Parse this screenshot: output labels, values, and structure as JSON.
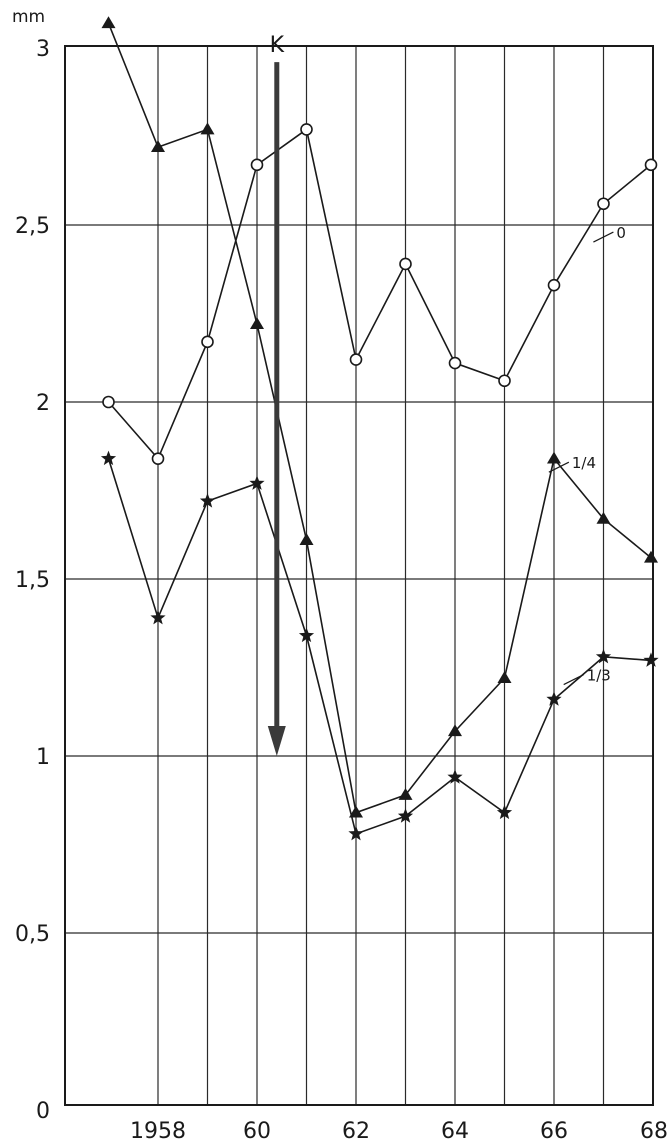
{
  "chart_data": {
    "type": "line",
    "title": "",
    "xlabel": "",
    "ylabel": "mm",
    "x_range": [
      1956.8,
      1968
    ],
    "ylim": [
      0,
      3.05
    ],
    "grid": true,
    "x_ticks": [
      {
        "value": 1958,
        "label": "1958"
      },
      {
        "value": 1960,
        "label": "60"
      },
      {
        "value": 1962,
        "label": "62"
      },
      {
        "value": 1964,
        "label": "64"
      },
      {
        "value": 1966,
        "label": "66"
      },
      {
        "value": 1968,
        "label": "68"
      }
    ],
    "y_ticks": [
      {
        "value": 0,
        "label": "0"
      },
      {
        "value": 0.5,
        "label": "0,5"
      },
      {
        "value": 1,
        "label": "1"
      },
      {
        "value": 1.5,
        "label": "1,5"
      },
      {
        "value": 2,
        "label": "2"
      },
      {
        "value": 2.5,
        "label": "2,5"
      },
      {
        "value": 3,
        "label": "3"
      }
    ],
    "x": [
      1957,
      1958,
      1959,
      1960,
      1961,
      1962,
      1963,
      1964,
      1965,
      1966,
      1967,
      1968
    ],
    "series": [
      {
        "name": "0",
        "marker": "circle",
        "x": [
          1957,
          1958,
          1959,
          1960,
          1961,
          1962,
          1963,
          1964,
          1965,
          1966,
          1967,
          1968
        ],
        "values": [
          2.0,
          1.84,
          2.17,
          2.67,
          2.77,
          2.12,
          2.39,
          2.11,
          2.06,
          2.33,
          2.56,
          2.67
        ],
        "label_anchor": {
          "x": 1967.2,
          "y": 2.48
        }
      },
      {
        "name": "1/4",
        "marker": "triangle",
        "x": [
          1957,
          1958,
          1959,
          1960,
          1961,
          1962,
          1963,
          1964,
          1965,
          1966,
          1967,
          1968
        ],
        "values": [
          3.07,
          2.72,
          2.77,
          2.22,
          1.61,
          0.84,
          0.89,
          1.07,
          1.22,
          1.84,
          1.67,
          1.56
        ],
        "label_anchor": {
          "x": 1966.3,
          "y": 1.83
        }
      },
      {
        "name": "1/3",
        "marker": "star",
        "x": [
          1957,
          1958,
          1959,
          1960,
          1961,
          1962,
          1963,
          1964,
          1965,
          1966,
          1967,
          1968
        ],
        "values": [
          1.84,
          1.39,
          1.72,
          1.77,
          1.34,
          0.78,
          0.83,
          0.94,
          0.84,
          1.16,
          1.28,
          1.27
        ],
        "label_anchor": {
          "x": 1966.6,
          "y": 1.23
        }
      }
    ],
    "annotations": [
      {
        "text": "K",
        "x": 1960.4,
        "y_start": 2.96,
        "y_end": 1.0,
        "style": "arrow-down"
      }
    ]
  }
}
